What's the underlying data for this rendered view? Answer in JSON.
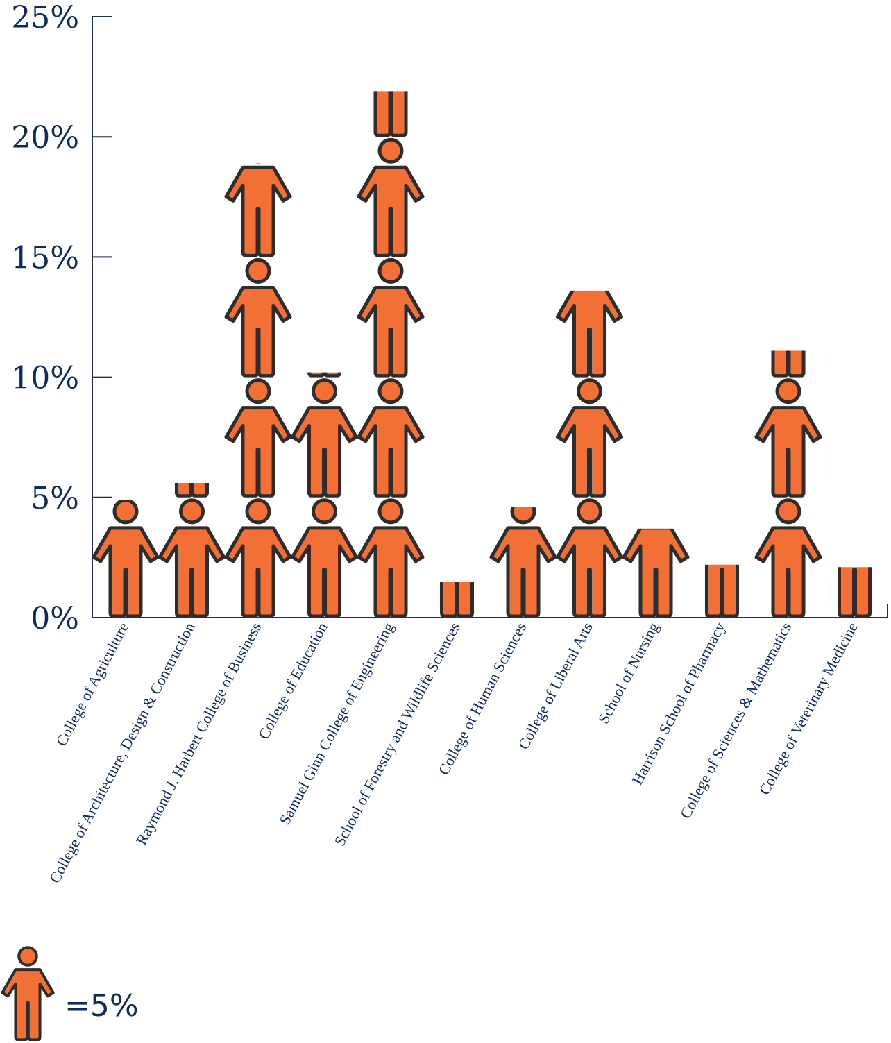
{
  "chart_data": {
    "type": "bar",
    "style": "pictograph",
    "title": "",
    "xlabel": "",
    "ylabel": "",
    "ylim": [
      0,
      25
    ],
    "yticks": [
      "0%",
      "5%",
      "10%",
      "15%",
      "20%",
      "25%"
    ],
    "categories": [
      "College of Agriculture",
      "College of Architecture, Design & Construction",
      "Raymond J. Harbert College of Business",
      "College of Education",
      "Samuel Ginn College of Engineering",
      "School of Forestry and Wildlife Sciences",
      "College of Human Sciences",
      "College of Liberal Arts",
      "School of Nursing",
      "Harrison School of Pharmacy",
      "College of Sciences & Mathematics",
      "College of  Veterinary Medicine"
    ],
    "values": [
      4.9,
      5.6,
      18.9,
      10.2,
      21.9,
      1.5,
      4.6,
      13.6,
      3.7,
      2.2,
      11.1,
      2.1
    ],
    "icon": "person-icon",
    "icon_unit_percent": 5,
    "color": "#f26f36",
    "outline_color": "#2d2d2d",
    "text_color": "#102a5a"
  },
  "legend": {
    "icon": "person-icon",
    "label": "=5%"
  }
}
